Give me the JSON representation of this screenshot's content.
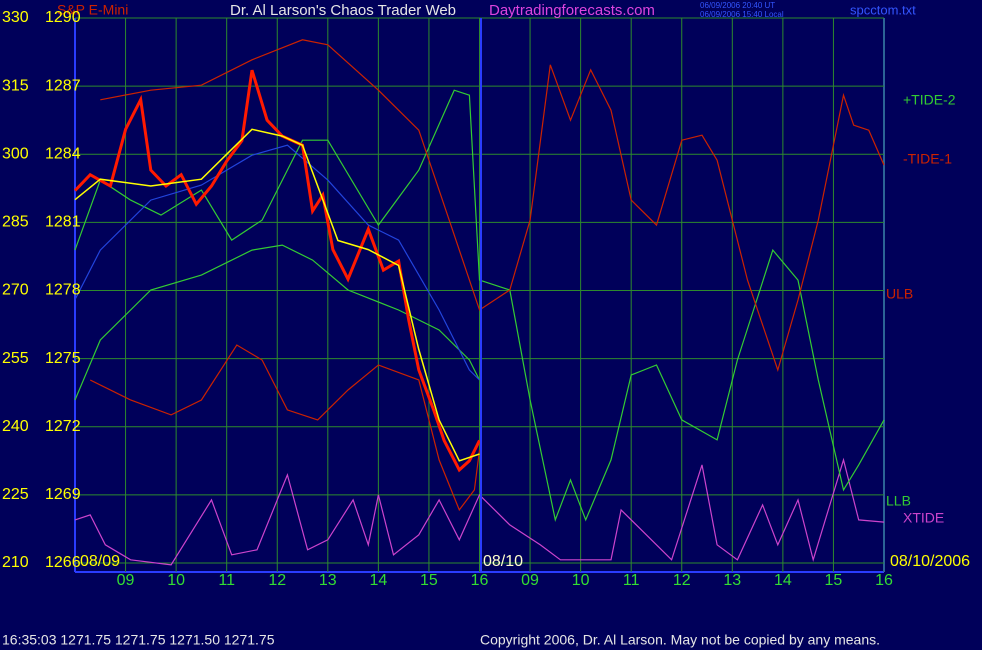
{
  "chart_data": {
    "type": "line",
    "title": "Dr. Al Larson's Chaos Trader Web",
    "instrument": "S&P E-Mini",
    "site": "Daytradingforecasts.com",
    "timestamp_ut": "06/09/2006 20:40 UT",
    "timestamp_local": "06/09/2006 15:40 Local",
    "file": "spcctom.txt",
    "dates": [
      "08/09",
      "08/10",
      "08/10/2006"
    ],
    "status": "16:35:03  1271.75 1271.75 1271.50 1271.75",
    "copyright": "Copyright 2006, Dr. Al Larson. May not be copied by any means.",
    "right_labels": [
      {
        "text": "+TIDE-2",
        "color": "#33cc33"
      },
      {
        "text": "-TIDE-1",
        "color": "#cc2200"
      },
      {
        "text": "ULB",
        "color": "#cc2200"
      },
      {
        "text": "LLB",
        "color": "#33cc33"
      },
      {
        "text": "XTIDE",
        "color": "#cc44cc"
      }
    ],
    "xlim": [
      0,
      16
    ],
    "xticks": [
      {
        "value": 1,
        "label": "09"
      },
      {
        "value": 2,
        "label": "10"
      },
      {
        "value": 3,
        "label": "11"
      },
      {
        "value": 4,
        "label": "12"
      },
      {
        "value": 5,
        "label": "13"
      },
      {
        "value": 6,
        "label": "14"
      },
      {
        "value": 7,
        "label": "15"
      },
      {
        "value": 8,
        "label": "16"
      },
      {
        "value": 9,
        "label": "09"
      },
      {
        "value": 10,
        "label": "10"
      },
      {
        "value": 11,
        "label": "11"
      },
      {
        "value": 12,
        "label": "12"
      },
      {
        "value": 13,
        "label": "13"
      },
      {
        "value": 14,
        "label": "14"
      },
      {
        "value": 15,
        "label": "15"
      },
      {
        "value": 16,
        "label": "16"
      }
    ],
    "ylim": [
      210,
      330
    ],
    "yticks": [
      210,
      225,
      240,
      255,
      270,
      285,
      300,
      315,
      330
    ],
    "y2lim": [
      1266,
      1290
    ],
    "y2ticks": [
      1266,
      1269,
      1272,
      1275,
      1278,
      1281,
      1284,
      1287,
      1290
    ],
    "grid": true,
    "series": [
      {
        "color": "#cc44cc",
        "x": [
          0,
          0.3,
          0.6,
          1.1,
          1.9,
          2.7,
          3.1,
          3.6,
          4.2,
          4.6,
          5.0,
          5.5,
          5.8,
          6.0,
          6.3,
          6.8,
          7.2,
          7.6,
          8.0,
          8.6,
          9.2,
          9.6,
          10.6,
          10.8,
          11.4,
          11.8,
          12.4,
          12.7,
          13.1,
          13.6,
          13.9,
          14.3,
          14.6,
          15.2,
          15.5,
          16
        ],
        "values": [
          219.5,
          220.6,
          214,
          210.7,
          209.6,
          223.9,
          211.8,
          212.9,
          229.4,
          212.9,
          215.1,
          223.9,
          214,
          225,
          211.8,
          216.2,
          223.9,
          215.1,
          225,
          218.4,
          214,
          210.7,
          210.7,
          221.7,
          215.1,
          210.7,
          231.6,
          214,
          210.7,
          222.8,
          214,
          223.9,
          210.7,
          232.7,
          219.5,
          219
        ]
      },
      {
        "color": "#33cc33",
        "x": [
          0,
          0.5,
          1.1,
          1.7,
          2.5,
          3.1,
          3.7,
          4.5,
          5.0,
          6.0,
          6.8,
          7.5,
          7.8,
          8.0,
          8.6,
          9.0,
          9.5,
          9.8,
          10.1,
          10.6,
          11.0,
          11.5,
          12.0,
          12.7,
          13.1,
          13.8,
          14.3,
          14.7,
          15.2,
          15.5,
          16
        ],
        "values": [
          278.9,
          294.3,
          289.9,
          286.6,
          292.1,
          281.1,
          285.5,
          303.1,
          303.1,
          284.4,
          296.5,
          314.1,
          313,
          272.3,
          270.1,
          245.9,
          219.5,
          228.3,
          219.5,
          232.7,
          251.4,
          253.6,
          241.5,
          237.1,
          254.7,
          278.9,
          272.3,
          250.3,
          226.1,
          231.6,
          241.5
        ]
      },
      {
        "color": "#cc2200",
        "x": [
          0.5,
          1.5,
          2.5,
          3.5,
          4.5,
          5.0,
          6.0,
          6.8,
          7.4,
          8.0,
          8.6,
          9.0,
          9.4,
          9.8,
          10.2,
          10.6,
          11.0,
          11.5,
          12.0,
          12.4,
          12.7,
          13.3,
          13.9,
          14.3,
          14.7,
          15.2,
          15.4,
          15.7,
          16
        ],
        "values": [
          312,
          314.1,
          315.2,
          320.8,
          325.2,
          324.1,
          314.1,
          305.3,
          285.5,
          265.7,
          270.1,
          285.5,
          319.7,
          307.5,
          318.6,
          309.7,
          289.9,
          284.4,
          303.1,
          304.2,
          298.7,
          272.3,
          252.5,
          267.9,
          285.5,
          313,
          306.4,
          305.3,
          297.6
        ]
      },
      {
        "color": "#cc2200",
        "x": [
          0.3,
          1.1,
          1.9,
          2.5,
          3.2,
          3.7,
          4.2,
          4.8,
          5.4,
          6.0,
          6.8,
          7.2,
          7.6,
          7.9,
          8.0
        ],
        "values": [
          250.3,
          245.9,
          242.6,
          245.9,
          258,
          254.7,
          243.7,
          241.5,
          248.1,
          253.6,
          250.3,
          232.7,
          221.7,
          226.1,
          234.9
        ]
      },
      {
        "color": "#33cc33",
        "x": [
          0,
          0.5,
          1.5,
          2.5,
          3.5,
          4.1,
          4.7,
          5.4,
          6.4,
          7.2,
          7.8,
          8.0
        ],
        "values": [
          245.9,
          259.1,
          270.1,
          273.4,
          278.9,
          280,
          276.7,
          270.1,
          265.7,
          261.3,
          254.7,
          250.3
        ]
      },
      {
        "color": "#2244dd",
        "x": [
          0,
          0.5,
          1.5,
          2.5,
          3.5,
          4.2,
          5.0,
          5.8,
          6.4,
          7.2,
          7.8,
          8.0
        ],
        "values": [
          268,
          278.9,
          289.9,
          293.2,
          299.8,
          302,
          294.3,
          284.4,
          281.1,
          265.7,
          252.5,
          250.3
        ]
      },
      {
        "color": "#ff1a00",
        "axis": "y2",
        "x": [
          0,
          0.3,
          0.7,
          1.0,
          1.3,
          1.5,
          1.8,
          2.1,
          2.4,
          2.7,
          3.0,
          3.3,
          3.5,
          3.8,
          4.1,
          4.5,
          4.7,
          4.9,
          5.1,
          5.4,
          5.8,
          6.1,
          6.4,
          6.6,
          6.8,
          7.1,
          7.3,
          7.6,
          7.8,
          8.0
        ],
        "values": [
          1282.4,
          1283.1,
          1282.6,
          1285.1,
          1286.4,
          1283.3,
          1282.6,
          1283.1,
          1281.8,
          1282.6,
          1283.7,
          1284.6,
          1287.7,
          1285.5,
          1284.8,
          1284.4,
          1281.5,
          1282.2,
          1279.8,
          1278.5,
          1280.7,
          1278.9,
          1279.3,
          1276.7,
          1274.5,
          1272.7,
          1271.4,
          1270.1,
          1270.5,
          1271.4
        ]
      },
      {
        "color": "#ffff00",
        "axis": "y2",
        "x": [
          0,
          0.5,
          1.5,
          2.5,
          3.5,
          4.1,
          4.5,
          4.9,
          5.2,
          5.8,
          6.4,
          6.8,
          7.2,
          7.6,
          8.0
        ],
        "values": [
          1282,
          1282.9,
          1282.6,
          1282.9,
          1285.1,
          1284.8,
          1284.4,
          1282,
          1280.2,
          1279.8,
          1279.1,
          1275.4,
          1272.3,
          1270.5,
          1270.8
        ]
      }
    ]
  }
}
